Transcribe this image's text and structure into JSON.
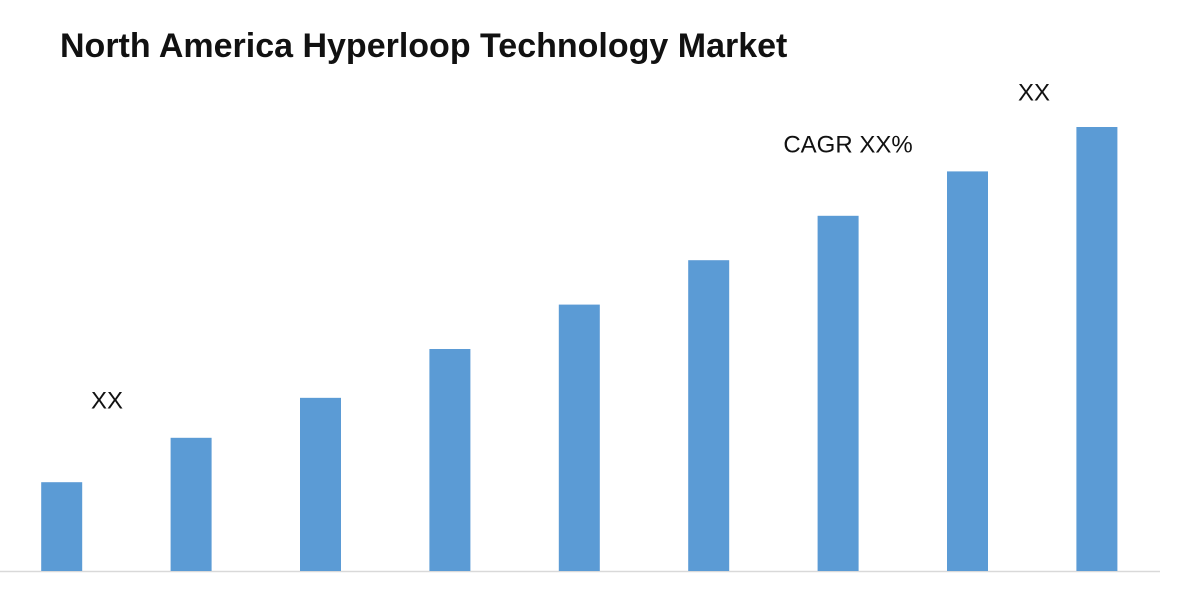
{
  "chart_data": {
    "type": "bar",
    "title": "North America Hyperloop Technology Market",
    "categories": [
      null,
      null,
      null,
      null,
      null,
      null,
      null,
      null,
      null
    ],
    "values": [
      20,
      30,
      39,
      50,
      60,
      70,
      80,
      90,
      100
    ],
    "color": "#5b9bd5",
    "ylim": [
      0,
      100
    ],
    "annotations": [
      "XX",
      "CAGR XX%",
      "XX"
    ]
  }
}
